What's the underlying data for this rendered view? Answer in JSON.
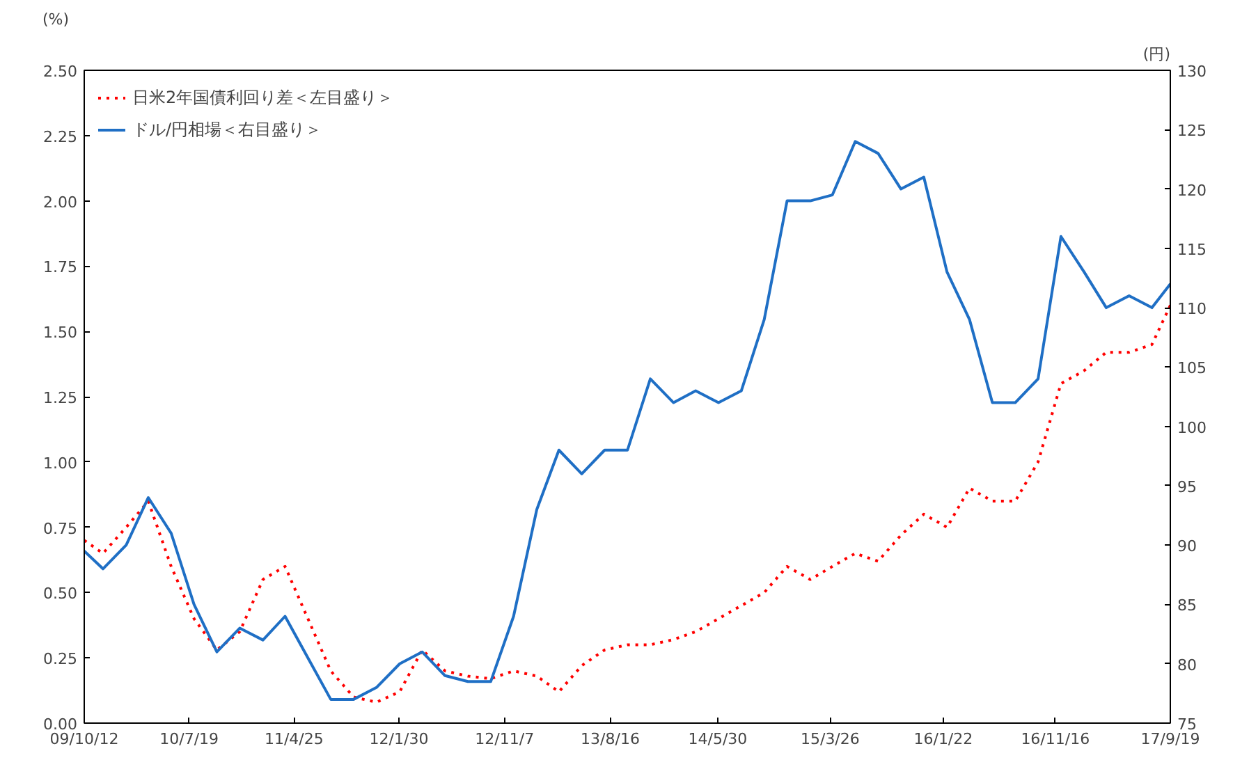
{
  "chart_data": {
    "type": "line",
    "ylabel": "(%)",
    "y2label": "(円)",
    "x": [
      "2009-10-12",
      "2009-12",
      "2010-02",
      "2010-04",
      "2010-06",
      "2010-08",
      "2010-10",
      "2010-12",
      "2011-02",
      "2011-04",
      "2011-06",
      "2011-08",
      "2011-10",
      "2011-12",
      "2012-02",
      "2012-04",
      "2012-06",
      "2012-08",
      "2012-10",
      "2012-12",
      "2013-02",
      "2013-04",
      "2013-06",
      "2013-08",
      "2013-10",
      "2013-12",
      "2014-02",
      "2014-04",
      "2014-06",
      "2014-08",
      "2014-10",
      "2014-12",
      "2015-02",
      "2015-04",
      "2015-06",
      "2015-08",
      "2015-10",
      "2015-12",
      "2016-02",
      "2016-04",
      "2016-06",
      "2016-08",
      "2016-10",
      "2016-12",
      "2017-02",
      "2017-04",
      "2017-06",
      "2017-08",
      "2017-09-19"
    ],
    "series": [
      {
        "name": "日米2年国債利回り差＜左目盛り＞",
        "color": "#ff0000",
        "line_style": "dotted",
        "values": [
          0.7,
          0.65,
          0.75,
          0.85,
          0.6,
          0.4,
          0.28,
          0.35,
          0.55,
          0.6,
          0.4,
          0.2,
          0.1,
          0.08,
          0.12,
          0.28,
          0.2,
          0.18,
          0.17,
          0.2,
          0.18,
          0.12,
          0.22,
          0.28,
          0.3,
          0.3,
          0.32,
          0.35,
          0.4,
          0.45,
          0.5,
          0.6,
          0.55,
          0.6,
          0.65,
          0.62,
          0.72,
          0.8,
          0.75,
          0.9,
          0.85,
          0.85,
          1.0,
          1.3,
          1.35,
          1.42,
          1.42,
          1.45,
          1.6
        ]
      },
      {
        "name": "ドル/円相場＜右目盛り＞",
        "color": "#1f6fc5",
        "axis": "y2",
        "line_style": "solid",
        "values": [
          89.5,
          88,
          90,
          94,
          91,
          85,
          81,
          83,
          82,
          84,
          80.5,
          77,
          77,
          78,
          80,
          81,
          79,
          78.5,
          78.5,
          84,
          93,
          98,
          96,
          98,
          98,
          104,
          102,
          103,
          102,
          103,
          109,
          119,
          119,
          119.5,
          124,
          123,
          120,
          121,
          113,
          109,
          102,
          102,
          104,
          116,
          113,
          110,
          111,
          110,
          112
        ]
      }
    ],
    "xlim": [
      "2009-10-12",
      "2017-09-19"
    ],
    "xticks": [
      {
        "value": "2009-10-12",
        "label": "09/10/12"
      },
      {
        "value": "2010-07-19",
        "label": "10/7/19"
      },
      {
        "value": "2011-04-25",
        "label": "11/4/25"
      },
      {
        "value": "2012-01-30",
        "label": "12/1/30"
      },
      {
        "value": "2012-11-07",
        "label": "12/11/7"
      },
      {
        "value": "2013-08-16",
        "label": "13/8/16"
      },
      {
        "value": "2014-05-30",
        "label": "14/5/30"
      },
      {
        "value": "2015-03-26",
        "label": "15/3/26"
      },
      {
        "value": "2016-01-22",
        "label": "16/1/22"
      },
      {
        "value": "2016-11-16",
        "label": "16/11/16"
      },
      {
        "value": "2017-09-19",
        "label": "17/9/19"
      }
    ],
    "ylim": [
      0,
      2.5
    ],
    "yticks": [
      {
        "value": 0,
        "label": "0.00"
      },
      {
        "value": 0.25,
        "label": "0.25"
      },
      {
        "value": 0.5,
        "label": "0.50"
      },
      {
        "value": 0.75,
        "label": "0.75"
      },
      {
        "value": 1,
        "label": "1.00"
      },
      {
        "value": 1.25,
        "label": "1.25"
      },
      {
        "value": 1.5,
        "label": "1.50"
      },
      {
        "value": 1.75,
        "label": "1.75"
      },
      {
        "value": 2,
        "label": "2.00"
      },
      {
        "value": 2.25,
        "label": "2.25"
      },
      {
        "value": 2.5,
        "label": "2.50"
      }
    ],
    "y2lim": [
      75,
      130
    ],
    "y2ticks": [
      75,
      80,
      85,
      90,
      95,
      100,
      105,
      110,
      115,
      120,
      125,
      130
    ],
    "grid": false,
    "legend": "top left",
    "marker": "none"
  }
}
